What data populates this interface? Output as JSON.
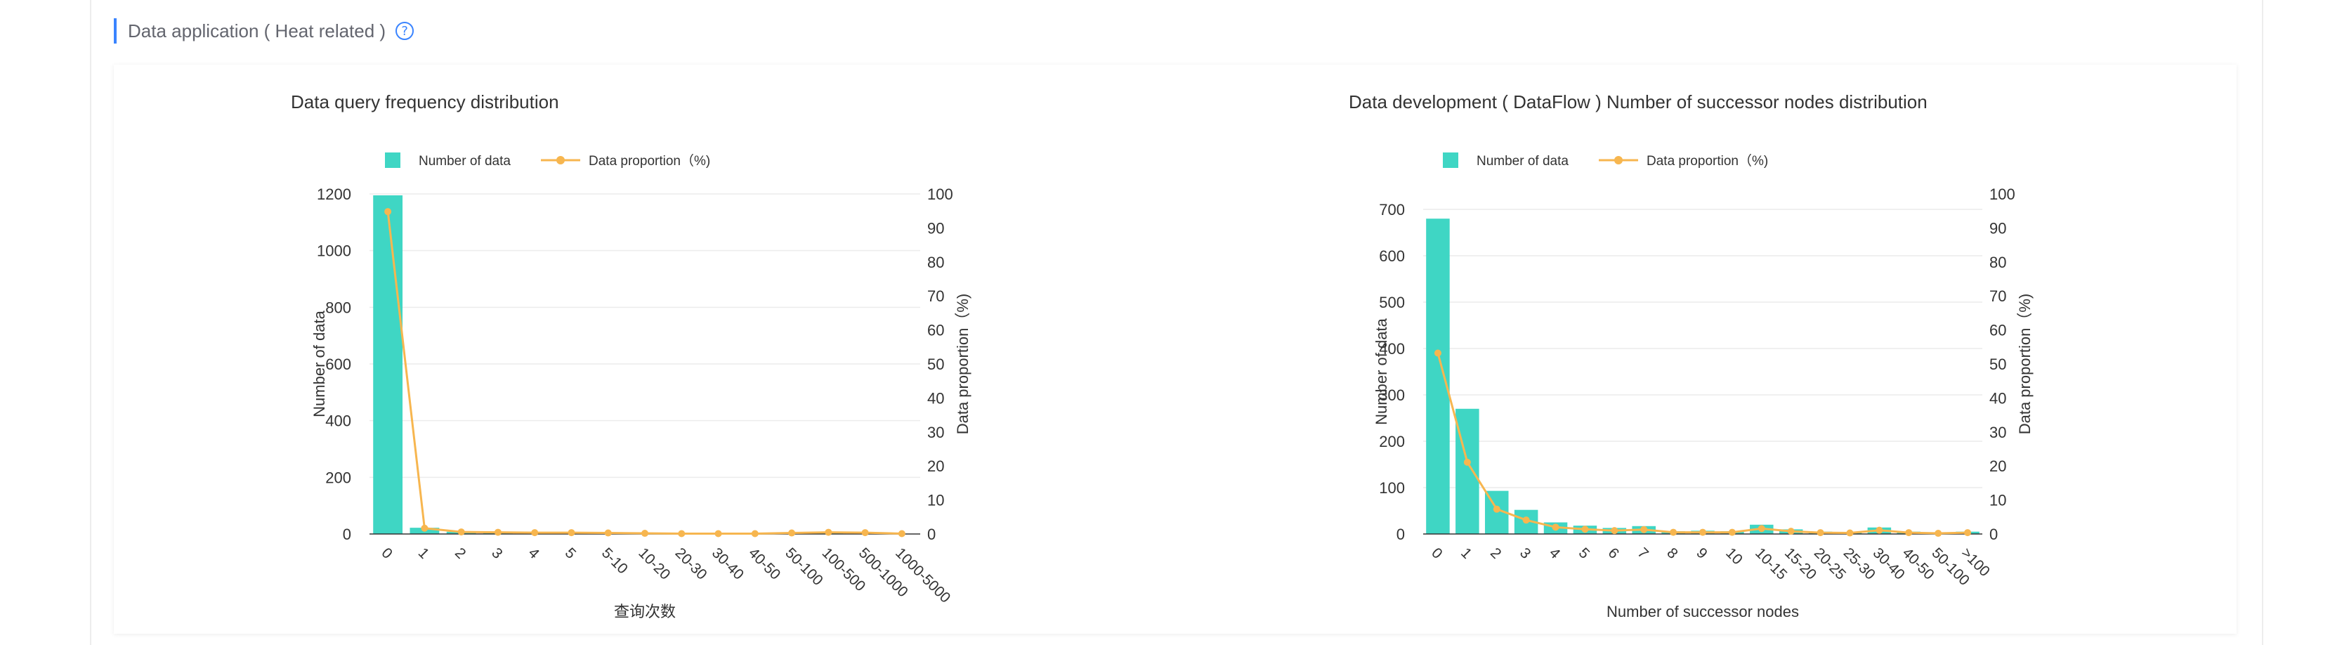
{
  "section": {
    "title": "Data application ( Heat related )",
    "help_icon": "question-circle-icon"
  },
  "colors": {
    "accent": "#3a84ff",
    "bar": "#3fd6c4",
    "line": "#f7b64f"
  },
  "chart_data": [
    {
      "type": "bar",
      "title": "Data query frequency distribution",
      "legend": [
        "Number of data",
        "Data proportion（%)"
      ],
      "legend_position": "top",
      "xlabel": "查询次数",
      "ylabel": "Number of data",
      "y2label": "Data proportion（%)",
      "categories": [
        "0",
        "1",
        "2",
        "3",
        "4",
        "5",
        "5-10",
        "10-20",
        "20-30",
        "30-40",
        "40-50",
        "50-100",
        "100-500",
        "500-1000",
        "1000-5000"
      ],
      "ylim": [
        0,
        1200
      ],
      "yticks": [
        0,
        200,
        400,
        600,
        800,
        1000,
        1200
      ],
      "y2lim": [
        0,
        100
      ],
      "y2ticks": [
        0,
        10,
        20,
        30,
        40,
        50,
        60,
        70,
        80,
        90,
        100
      ],
      "grid": true,
      "series": [
        {
          "name": "Number of data",
          "type": "bar",
          "axis": "left",
          "values": [
            1195,
            22,
            8,
            6,
            5,
            5,
            4,
            2,
            1,
            1,
            1,
            4,
            6,
            5,
            1
          ]
        },
        {
          "name": "Data proportion（%)",
          "type": "line",
          "axis": "right",
          "values": [
            94.8,
            1.7,
            0.6,
            0.5,
            0.4,
            0.4,
            0.3,
            0.2,
            0.1,
            0.1,
            0.1,
            0.3,
            0.5,
            0.4,
            0.1
          ]
        }
      ]
    },
    {
      "type": "bar",
      "title": "Data development ( DataFlow ) Number of successor nodes distribution",
      "legend": [
        "Number of data",
        "Data proportion（%)"
      ],
      "legend_position": "top",
      "xlabel": "Number of successor nodes",
      "ylabel": "Number of data",
      "y2label": "Data proportion（%)",
      "categories": [
        "0",
        "1",
        "2",
        "3",
        "4",
        "5",
        "6",
        "7",
        "8",
        "9",
        "10",
        "10-15",
        "15-20",
        "20-25",
        "25-30",
        "30-40",
        "40-50",
        "50-100",
        ">100"
      ],
      "ylim": [
        0,
        700
      ],
      "yticks": [
        0,
        100,
        200,
        300,
        400,
        500,
        600,
        700
      ],
      "y2lim": [
        0,
        100
      ],
      "y2ticks": [
        0,
        10,
        20,
        30,
        40,
        50,
        60,
        70,
        80,
        90,
        100
      ],
      "grid": true,
      "series": [
        {
          "name": "Number of data",
          "type": "bar",
          "axis": "left",
          "values": [
            680,
            270,
            93,
            52,
            25,
            18,
            13,
            17,
            6,
            7,
            6,
            20,
            10,
            5,
            4,
            14,
            5,
            3,
            5
          ]
        },
        {
          "name": "Data proportion（%)",
          "type": "line",
          "axis": "right",
          "values": [
            53.2,
            21.1,
            7.3,
            4.1,
            2.0,
            1.4,
            1.0,
            1.3,
            0.5,
            0.5,
            0.5,
            1.6,
            0.8,
            0.4,
            0.3,
            1.1,
            0.4,
            0.2,
            0.4
          ]
        }
      ]
    }
  ]
}
